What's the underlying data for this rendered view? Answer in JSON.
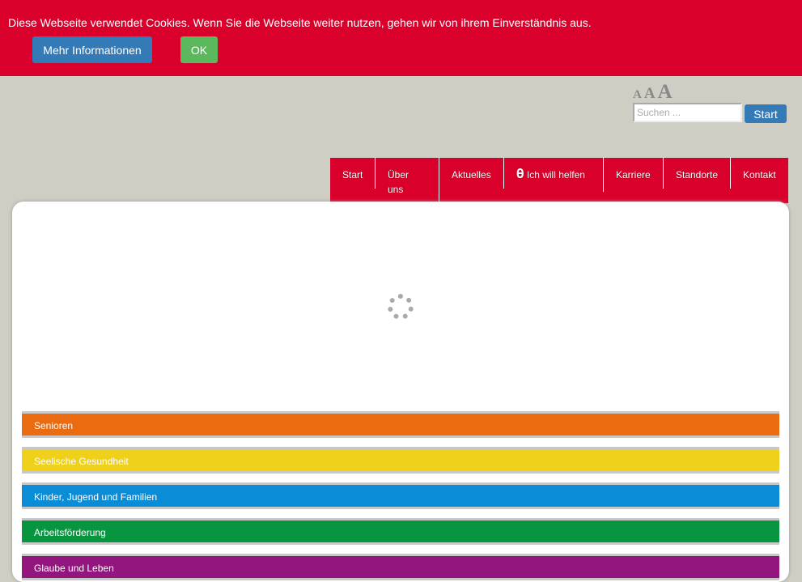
{
  "cookie": {
    "message": "Diese Webseite verwendet Cookies. Wenn Sie die Webseite weiter nutzen, gehen wir von ihrem Einverständnis aus.",
    "more_label": "Mehr Informationen",
    "ok_label": "OK"
  },
  "font_size": {
    "small": "A",
    "medium": "A",
    "large": "A"
  },
  "search": {
    "placeholder": "Suchen ...",
    "button": "Start"
  },
  "nav": [
    "Start",
    "Über uns",
    "Aktuelles",
    "Ich will helfen",
    "Karriere",
    "Standorte",
    "Kontakt"
  ],
  "categories": [
    {
      "label": "Senioren",
      "color": "#ea6b10"
    },
    {
      "label": "Seelische Gesundheit",
      "color": "#efd01a"
    },
    {
      "label": "Kinder, Jugend und Familien",
      "color": "#0a8cd6"
    },
    {
      "label": "Arbeitsförderung",
      "color": "#079540"
    },
    {
      "label": "Glaube und Leben",
      "color": "#93167f"
    }
  ]
}
